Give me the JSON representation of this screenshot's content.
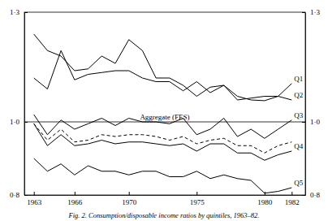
{
  "chart_data": {
    "type": "line",
    "title": "Fig. 2. Consumption/disposable income ratios by quintiles, 1963–82.",
    "x": [
      1963,
      1964,
      1965,
      1966,
      1967,
      1968,
      1969,
      1970,
      1971,
      1972,
      1973,
      1974,
      1975,
      1976,
      1977,
      1978,
      1979,
      1980,
      1981,
      1982
    ],
    "series": [
      {
        "name": "Q1",
        "color": "#000000",
        "line_style": "solid",
        "values": [
          1.24,
          1.195,
          1.18,
          1.14,
          1.145,
          1.18,
          1.16,
          1.225,
          1.195,
          1.12,
          1.12,
          1.1,
          1.07,
          1.095,
          1.1,
          1.07,
          1.06,
          1.058,
          1.07,
          1.105
        ]
      },
      {
        "name": "Q2",
        "color": "#000000",
        "line_style": "solid",
        "values": [
          1.12,
          1.09,
          1.195,
          1.115,
          1.13,
          1.135,
          1.14,
          1.14,
          1.12,
          1.11,
          1.11,
          1.085,
          1.11,
          1.08,
          1.1,
          1.06,
          1.065,
          1.07,
          1.07,
          1.06
        ]
      },
      {
        "name": "Q3",
        "color": "#000000",
        "line_style": "solid",
        "values": [
          1.02,
          0.965,
          1.005,
          0.98,
          0.995,
          1.01,
          0.99,
          1.01,
          1.0,
          1.0,
          0.995,
          1.01,
          0.965,
          0.98,
          1.01,
          0.96,
          0.98,
          0.955,
          0.98,
          1.005
        ]
      },
      {
        "name": "Aggregate (FES)",
        "color": "#000000",
        "line_style": "dashed",
        "values": [
          0.995,
          0.95,
          0.98,
          0.945,
          0.95,
          0.965,
          0.96,
          0.965,
          0.965,
          0.96,
          0.95,
          0.96,
          0.94,
          0.95,
          0.955,
          0.935,
          0.935,
          0.915,
          0.935,
          0.945
        ]
      },
      {
        "name": "Q4",
        "color": "#000000",
        "line_style": "solid",
        "values": [
          0.995,
          0.935,
          0.965,
          0.935,
          0.94,
          0.95,
          0.94,
          0.945,
          0.945,
          0.94,
          0.935,
          0.94,
          0.92,
          0.94,
          0.94,
          0.915,
          0.915,
          0.895,
          0.91,
          0.92
        ]
      },
      {
        "name": "Q5",
        "color": "#000000",
        "line_style": "solid",
        "values": [
          0.9,
          0.865,
          0.885,
          0.855,
          0.88,
          0.865,
          0.865,
          0.855,
          0.865,
          0.865,
          0.85,
          0.85,
          0.865,
          0.845,
          0.855,
          0.845,
          0.84,
          0.805,
          0.81,
          0.82
        ]
      }
    ],
    "hlines": [
      1
    ],
    "xlim": [
      1962.3,
      1983
    ],
    "xticks": [
      1963,
      1966,
      1970,
      1975,
      1980,
      1982
    ],
    "ylim": [
      0.8,
      1.3
    ],
    "yticks": [
      {
        "value": 0.8,
        "label": "0·8"
      },
      {
        "value": 1.0,
        "label": "1·0"
      },
      {
        "value": 1.3,
        "label": "1·3"
      }
    ],
    "grid": false
  }
}
